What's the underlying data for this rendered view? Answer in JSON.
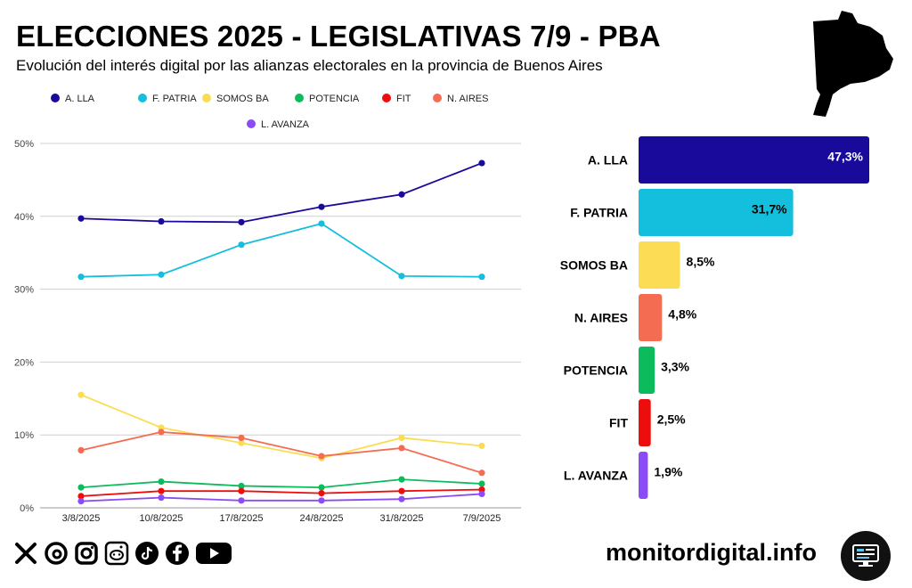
{
  "header": {
    "title": "ELECCIONES 2025 - LEGISLATIVAS 7/9 - PBA",
    "subtitle": "Evolución del interés digital por las alianzas electorales en la provincia de Buenos Aires"
  },
  "footer": {
    "site": "monitordigital.info",
    "social_icons": [
      "x-icon",
      "threads-icon",
      "instagram-icon",
      "reddit-icon",
      "tiktok-icon",
      "facebook-icon",
      "youtube-icon"
    ]
  },
  "chart_data": [
    {
      "type": "line",
      "title": "",
      "x": [
        "3/8/2025",
        "10/8/2025",
        "17/8/2025",
        "24/8/2025",
        "31/8/2025",
        "7/9/2025"
      ],
      "ylim": [
        0,
        50
      ],
      "yticks": [
        0,
        10,
        20,
        30,
        40,
        50
      ],
      "ytick_labels": [
        "0%",
        "10%",
        "20%",
        "30%",
        "40%",
        "50%"
      ],
      "grid": true,
      "legend_position": "top",
      "series": [
        {
          "name": "A. LLA",
          "color": "#1a0a9c",
          "values": [
            39.7,
            39.3,
            39.2,
            41.3,
            43.0,
            47.3
          ]
        },
        {
          "name": "F. PATRIA",
          "color": "#13bfdc",
          "values": [
            31.7,
            32.0,
            36.1,
            39.0,
            31.8,
            31.7
          ]
        },
        {
          "name": "SOMOS BA",
          "color": "#fbdc54",
          "values": [
            15.5,
            11.0,
            8.9,
            6.8,
            9.6,
            8.5
          ]
        },
        {
          "name": "POTENCIA",
          "color": "#0cbb5c",
          "values": [
            2.8,
            3.6,
            3.0,
            2.8,
            3.9,
            3.3
          ]
        },
        {
          "name": "FIT",
          "color": "#ee0d0d",
          "values": [
            1.6,
            2.3,
            2.3,
            2.0,
            2.3,
            2.5
          ]
        },
        {
          "name": "N. AIRES",
          "color": "#f46d52",
          "values": [
            7.9,
            10.4,
            9.6,
            7.1,
            8.2,
            4.8
          ]
        },
        {
          "name": "L. AVANZA",
          "color": "#8b4cf5",
          "values": [
            0.9,
            1.4,
            1.0,
            1.0,
            1.2,
            1.9
          ]
        }
      ]
    },
    {
      "type": "bar",
      "orientation": "horizontal",
      "categories": [
        "A. LLA",
        "F. PATRIA",
        "SOMOS BA",
        "N. AIRES",
        "POTENCIA",
        "FIT",
        "L. AVANZA"
      ],
      "values": [
        47.3,
        31.7,
        8.5,
        4.8,
        3.3,
        2.5,
        1.9
      ],
      "labels": [
        "47,3%",
        "31,7%",
        "8,5%",
        "4,8%",
        "3,3%",
        "2,5%",
        "1,9%"
      ],
      "colors": [
        "#1a0a9c",
        "#13bfdc",
        "#fbdc54",
        "#f46d52",
        "#0cbb5c",
        "#ee0d0d",
        "#8b4cf5"
      ],
      "label_colors": [
        "#ffffff",
        "#000000",
        "#000000",
        "#000000",
        "#000000",
        "#000000",
        "#000000"
      ],
      "label_inside": [
        true,
        true,
        false,
        false,
        false,
        false,
        false
      ],
      "xlim": [
        0,
        50
      ]
    }
  ]
}
